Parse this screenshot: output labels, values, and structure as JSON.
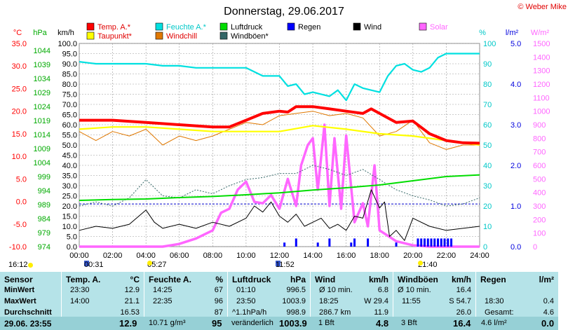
{
  "chart_data": {
    "type": "line",
    "title": "Donnerstag, 29.06.2017",
    "copyright": "© Weber Mike",
    "x_ticks": [
      "00:00",
      "02:00",
      "04:00",
      "06:00",
      "08:00",
      "10:00",
      "12:00",
      "14:00",
      "16:00",
      "18:00",
      "20:00",
      "22:00",
      "24:00"
    ],
    "axes": {
      "temp": {
        "unit": "°C",
        "ticks": [
          "35.0",
          "30.0",
          "25.0",
          "20.0",
          "15.0",
          "10.0",
          "5.0",
          "0.0",
          "-5.0",
          "-10.0"
        ],
        "color": "#ff0000"
      },
      "press": {
        "unit": "hPa",
        "ticks": [
          "1044",
          "1039",
          "1034",
          "1029",
          "1024",
          "1019",
          "1014",
          "1009",
          "1004",
          "999",
          "994",
          "989",
          "984",
          "979",
          "974"
        ],
        "color": "#00aa00"
      },
      "wind": {
        "unit": "km/h",
        "ticks": [
          "100.0",
          "95.0",
          "90.0",
          "85.0",
          "80.0",
          "75.0",
          "70.0",
          "65.0",
          "60.0",
          "55.0",
          "50.0",
          "45.0",
          "40.0",
          "35.0",
          "30.0",
          "25.0",
          "20.0",
          "15.0",
          "10.0",
          "5.0",
          "0.0"
        ],
        "color": "#000000"
      },
      "hum": {
        "unit": "%",
        "ticks": [
          "100",
          "90",
          "80",
          "70",
          "60",
          "50",
          "40",
          "30",
          "20",
          "10",
          "0"
        ],
        "color": "#00c8c8"
      },
      "rain": {
        "unit": "l/m²",
        "ticks": [
          "5.0",
          "4.0",
          "3.0",
          "2.0",
          "1.0",
          "0.0"
        ],
        "color": "#0000dd"
      },
      "solar": {
        "unit": "W/m²",
        "ticks": [
          "1500",
          "1400",
          "1300",
          "1200",
          "1100",
          "1000",
          "900",
          "800",
          "700",
          "600",
          "500",
          "400",
          "300",
          "200",
          "100",
          "0"
        ],
        "color": "#ff66ff"
      }
    },
    "legend": [
      {
        "name": "Temp. A.*",
        "color": "#ff0000"
      },
      {
        "name": "Feuchte A.*",
        "color": "#00e0e0"
      },
      {
        "name": "Luftdruck",
        "color": "#00dd00"
      },
      {
        "name": "Regen",
        "color": "#0000ff"
      },
      {
        "name": "Wind",
        "color": "#000000"
      },
      {
        "name": "Solar",
        "color": "#ff66ff"
      },
      {
        "name": "Taupunkt*",
        "color": "#ffff00"
      },
      {
        "name": "Windchill",
        "color": "#e07800"
      },
      {
        "name": "Windböen*",
        "color": "#336666"
      }
    ],
    "series": [
      {
        "name": "Temp. A.*",
        "axis": "temp",
        "x": [
          0,
          2,
          4,
          6,
          8,
          9,
          10,
          11,
          12,
          12.5,
          13,
          14,
          15,
          16,
          17,
          17.5,
          18,
          19,
          20,
          21,
          22,
          23,
          24
        ],
        "values": [
          18.0,
          18.0,
          17.5,
          17.0,
          16.5,
          16.5,
          18.0,
          19.5,
          20.0,
          19.8,
          21.0,
          21.0,
          20.5,
          20.0,
          19.5,
          20.5,
          19.5,
          17.5,
          17.8,
          15.0,
          13.5,
          13.0,
          12.9
        ]
      },
      {
        "name": "Taupunkt*",
        "axis": "temp",
        "x": [
          0,
          2,
          4,
          6,
          8,
          10,
          12,
          14,
          16,
          18,
          20,
          22,
          24
        ],
        "values": [
          16.0,
          16.5,
          16.5,
          16.0,
          15.5,
          15.5,
          15.5,
          16.8,
          16.0,
          15.0,
          14.5,
          13.5,
          12.5
        ]
      },
      {
        "name": "Windchill",
        "axis": "temp",
        "x": [
          0,
          1,
          2,
          3,
          4,
          5,
          6,
          7,
          8,
          9,
          10,
          11,
          12,
          13,
          14,
          15,
          16,
          17,
          18,
          19,
          20,
          21,
          22,
          23,
          24
        ],
        "values": [
          15.5,
          13.5,
          15.5,
          14.5,
          16.0,
          12.5,
          14.5,
          13.5,
          14.5,
          16.0,
          17.5,
          17.0,
          19.0,
          19.5,
          20.0,
          19.0,
          19.5,
          18.5,
          14.5,
          15.5,
          18.0,
          13.0,
          11.5,
          12.5,
          12.5
        ]
      },
      {
        "name": "Feuchte A.*",
        "axis": "hum",
        "x": [
          0,
          1,
          2,
          3,
          4,
          5,
          6,
          7,
          8,
          9,
          10,
          11,
          12,
          12.5,
          13,
          13.5,
          14,
          15,
          15.5,
          16,
          16.5,
          17,
          17.5,
          18,
          18.5,
          19,
          19.5,
          20,
          20.5,
          21,
          21.5,
          22,
          23,
          24
        ],
        "values": [
          91,
          90,
          90,
          90,
          90,
          89,
          89,
          88,
          88,
          88,
          88,
          84,
          84,
          79,
          80,
          75,
          76,
          74,
          77,
          72,
          80,
          78,
          77,
          76,
          84,
          89,
          90,
          87,
          86,
          88,
          93,
          95,
          95,
          95
        ]
      },
      {
        "name": "Luftdruck",
        "axis": "press",
        "x": [
          0,
          2,
          4,
          6,
          8,
          10,
          12,
          14,
          16,
          18,
          20,
          22,
          24
        ],
        "values": [
          990.5,
          990.8,
          991.0,
          991.5,
          991.9,
          992.5,
          993.2,
          994.2,
          995.0,
          996.0,
          997.5,
          999.0,
          999.6
        ]
      },
      {
        "name": "Wind",
        "axis": "wind",
        "x": [
          0,
          1,
          2,
          3,
          4,
          4.5,
          5,
          6,
          7,
          8,
          9,
          10,
          10.5,
          11,
          11.5,
          12,
          12.5,
          13,
          13.5,
          14,
          14.5,
          15,
          15.5,
          16,
          16.5,
          17,
          17.5,
          18,
          18.3,
          18.6,
          19,
          19.5,
          20,
          21,
          22,
          23,
          24
        ],
        "values": [
          8,
          10,
          9,
          11,
          18,
          12,
          9,
          11,
          9,
          12,
          10,
          14,
          20,
          17,
          22,
          15,
          12,
          16,
          10,
          12,
          14,
          9,
          11,
          8,
          15,
          14,
          28,
          19,
          22,
          5,
          8,
          3,
          14,
          10,
          8,
          9,
          10
        ]
      },
      {
        "name": "Windböen*",
        "axis": "wind",
        "x": [
          0,
          1,
          2,
          3,
          4,
          5,
          6,
          7,
          8,
          9,
          10,
          11,
          12,
          13,
          14,
          15,
          16,
          17,
          18,
          19,
          20,
          21,
          22,
          23,
          24
        ],
        "values": [
          20,
          22,
          20,
          24,
          33,
          25,
          24,
          28,
          26,
          30,
          33,
          34,
          36,
          36,
          40,
          38,
          35,
          38,
          33,
          28,
          25,
          23,
          20,
          21,
          24
        ]
      },
      {
        "name": "Solar",
        "axis": "solar",
        "x": [
          0,
          5,
          5.5,
          6,
          7,
          8,
          8.5,
          9,
          9.5,
          10,
          10.5,
          11,
          11.5,
          12,
          12.5,
          13,
          13.3,
          13.7,
          14,
          14.3,
          14.7,
          15,
          15.3,
          15.7,
          16,
          16.5,
          17,
          17.3,
          17.7,
          18,
          18.5,
          19,
          20,
          21,
          24
        ],
        "values": [
          0,
          0,
          10,
          20,
          60,
          120,
          250,
          280,
          420,
          480,
          330,
          320,
          380,
          280,
          500,
          300,
          600,
          750,
          800,
          420,
          900,
          300,
          800,
          280,
          820,
          180,
          320,
          150,
          600,
          120,
          80,
          40,
          10,
          0,
          0
        ]
      }
    ],
    "rain_bars": {
      "x": [
        12.3,
        13.0,
        14.3,
        15.0,
        16.3,
        16.5,
        17.3,
        19.0,
        20.3,
        20.5,
        20.7,
        20.9,
        21.1,
        21.3,
        21.5,
        21.7,
        21.9,
        22.1,
        22.3
      ],
      "values": [
        0.1,
        0.2,
        0.1,
        0.2,
        0.1,
        0.2,
        0.2,
        0.1,
        0.2,
        0.2,
        0.2,
        0.2,
        0.2,
        0.2,
        0.2,
        0.2,
        0.2,
        0.2,
        0.2
      ]
    },
    "hline_wind_value": 21,
    "xlim": [
      0,
      24
    ]
  },
  "sun": {
    "rise_time": "16:12",
    "moonrise": "00:31",
    "sunrise": "05:27",
    "noon": "11:52",
    "sunset": "21:40"
  },
  "table": {
    "sensor": {
      "header": "Sensor",
      "rows": [
        "MinWert",
        "MaxWert",
        "Durchschnitt"
      ],
      "foot": "29.06. 23:55"
    },
    "temp": {
      "header": "Temp. A.",
      "unit": "°C",
      "rows": [
        [
          "23:30",
          "12.9"
        ],
        [
          "14:00",
          "21.1"
        ],
        [
          "",
          "16.53"
        ]
      ],
      "foot": "12.9"
    },
    "hum": {
      "header": "Feuchte A.",
      "unit": "%",
      "rows": [
        [
          "14:25",
          "67"
        ],
        [
          "22:35",
          "96"
        ],
        [
          "",
          "87"
        ]
      ],
      "foot_left": "10.71 g/m³",
      "foot": "95"
    },
    "press": {
      "header": "Luftdruck",
      "unit": "hPa",
      "rows": [
        [
          "01:10",
          "996.5"
        ],
        [
          "23:50",
          "1003.9"
        ],
        [
          "^1.1hPa/h",
          "998.9"
        ]
      ],
      "foot_left": "veränderlich",
      "foot": "1003.9"
    },
    "wind": {
      "header": "Wind",
      "unit": "km/h",
      "rows": [
        [
          "Ø 10 min.",
          "6.8"
        ],
        [
          "18:25",
          "W 29.4"
        ],
        [
          "286.7 km",
          "11.9"
        ]
      ],
      "foot_left": "1 Bft",
      "foot": "4.8"
    },
    "gust": {
      "header": "Windböen",
      "unit": "km/h",
      "rows": [
        [
          "Ø 10 min.",
          "16.4"
        ],
        [
          "11:55",
          "S 54.7"
        ],
        [
          "",
          "26.0"
        ]
      ],
      "foot_left": "3 Bft",
      "foot": "16.4"
    },
    "rain": {
      "header": "Regen",
      "unit": "l/m²",
      "rows": [
        [
          "",
          ""
        ],
        [
          "18:30",
          "0.4"
        ],
        [
          "Gesamt:",
          "4.6"
        ]
      ],
      "foot_left": "4.6 l/m²",
      "foot": "0.0"
    }
  }
}
